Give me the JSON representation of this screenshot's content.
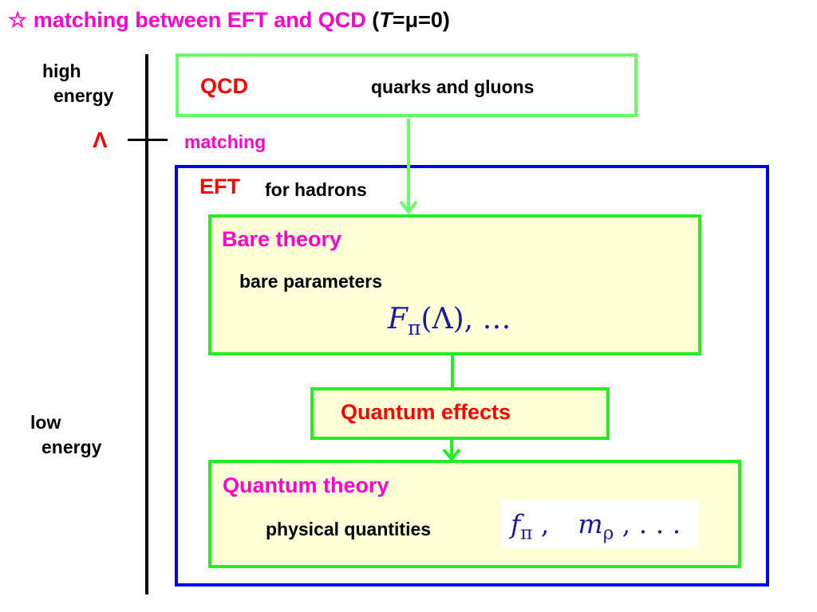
{
  "title": {
    "star": "☆",
    "main": "matching between EFT and QCD",
    "paren_open": "(",
    "var_T": "T",
    "rest": "=μ=0)"
  },
  "axis": {
    "high_energy": [
      "high",
      "energy"
    ],
    "low_energy": [
      "low",
      "energy"
    ],
    "lambda": "Λ",
    "matching": "matching"
  },
  "qcd": {
    "label": "QCD",
    "desc": "quarks and gluons"
  },
  "eft": {
    "label": "EFT",
    "desc": "for hadrons"
  },
  "bare": {
    "title": "Bare theory",
    "desc": "bare parameters",
    "math": {
      "F": "F",
      "sub": "π",
      "arg": "(Λ)",
      "tail": ",  …"
    }
  },
  "quantum_effects": {
    "label": "Quantum effects"
  },
  "quantum_theory": {
    "title": "Quantum theory",
    "desc": "physical quantities",
    "math": {
      "f": "f",
      "f_sub": "π",
      "sep": " ,",
      "m": "m",
      "m_sub": "ρ",
      "tail": " , . . ."
    }
  },
  "colors": {
    "title": "#ff00cc",
    "qcd_border": "#66ff66",
    "eft_border": "#0000ee",
    "inner_border": "#22ee22",
    "box_fill": "#ffffd8",
    "label_red": "#ff0000",
    "math": "#1a1aa0"
  }
}
